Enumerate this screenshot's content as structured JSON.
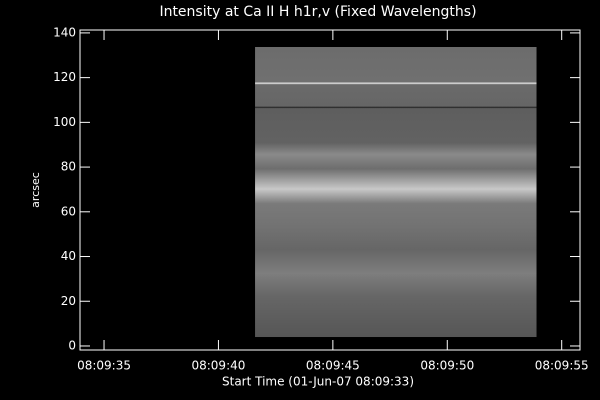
{
  "chart_data": {
    "type": "image",
    "title": "Intensity at Ca II H h1r,v (Fixed Wavelengths)",
    "xlabel": "Start Time (01-Jun-07 08:09:33)",
    "ylabel": "arcsec",
    "xlim": [
      33.95,
      55.8
    ],
    "xticks": [
      {
        "value": 35,
        "label": "08:09:35"
      },
      {
        "value": 40,
        "label": "08:09:40"
      },
      {
        "value": 45,
        "label": "08:09:45"
      },
      {
        "value": 50,
        "label": "08:09:50"
      },
      {
        "value": 55,
        "label": "08:09:55"
      }
    ],
    "ylim": [
      -1.8,
      141.3
    ],
    "yticks": [
      0,
      20,
      40,
      60,
      80,
      100,
      120,
      140
    ],
    "image_extent": {
      "x": [
        41.6,
        53.9
      ],
      "y": [
        4,
        133.7
      ]
    }
  }
}
